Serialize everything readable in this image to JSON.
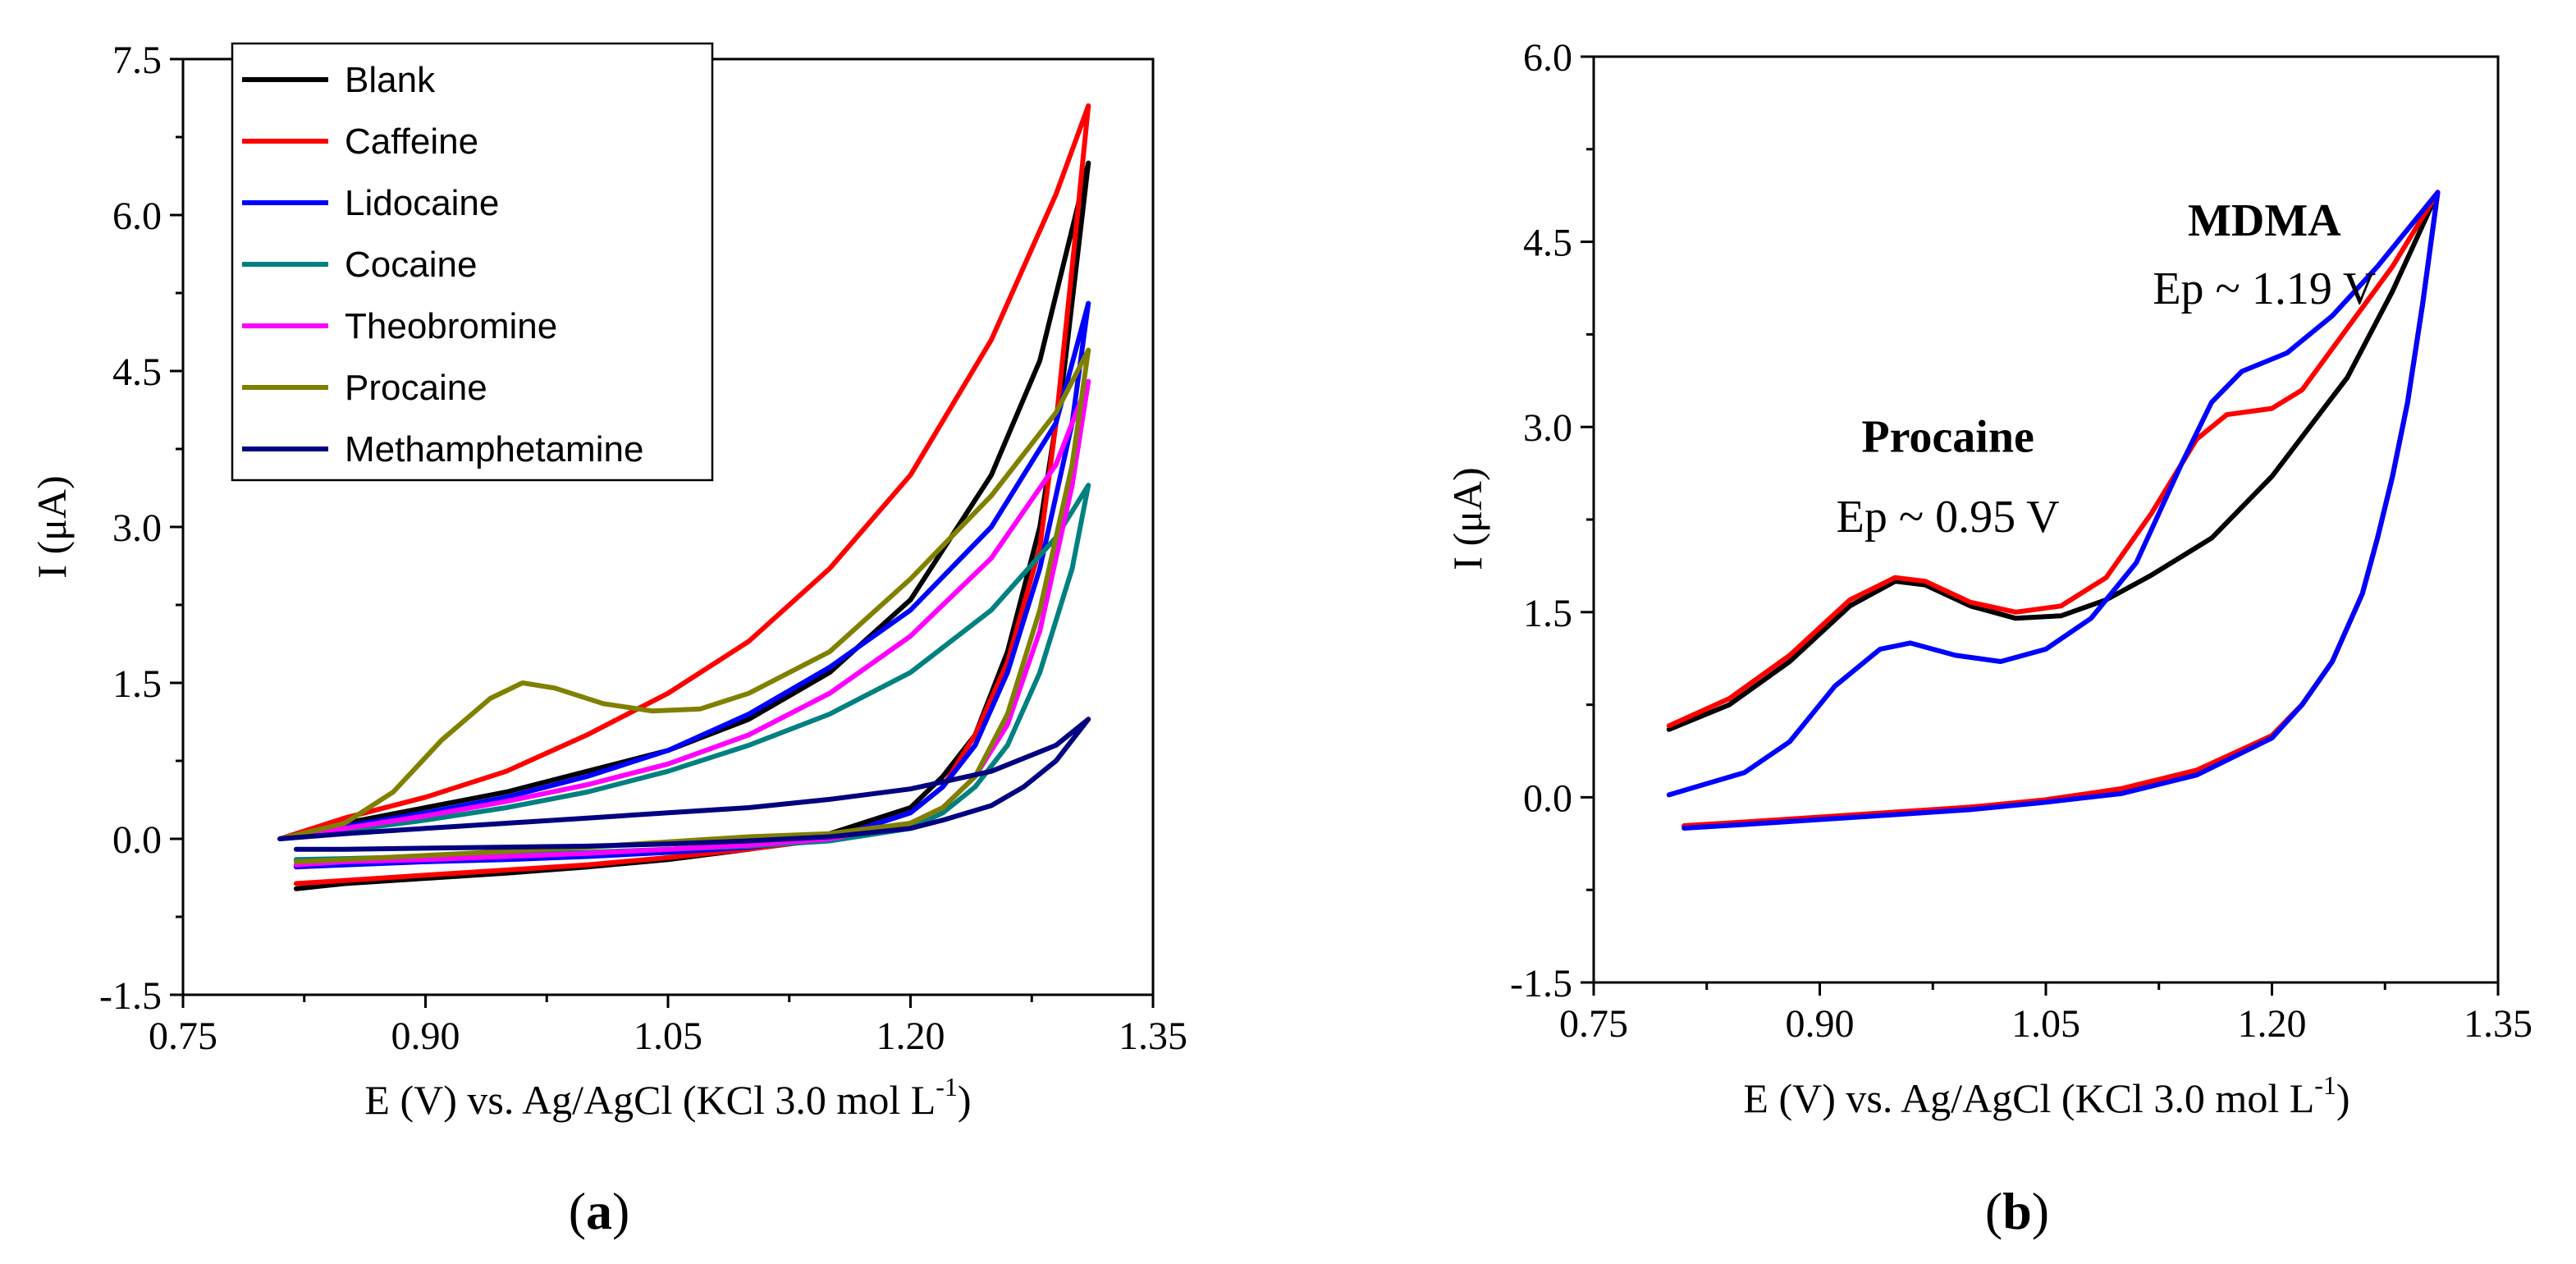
{
  "chart_data": [
    {
      "panel": "a",
      "type": "line",
      "title": "",
      "xlabel": "E (V) vs. Ag/AgCl (KCl 3.0 mol L",
      "xlabel_sup": "-1",
      "xlabel_end": ")",
      "ylabel": "I (μA)",
      "xlim": [
        0.75,
        1.35
      ],
      "ylim": [
        -1.5,
        7.5
      ],
      "xticks": [
        0.75,
        0.9,
        1.05,
        1.2,
        1.35
      ],
      "xtick_labels": [
        "0.75",
        "0.90",
        "1.05",
        "1.20",
        "1.35"
      ],
      "yticks": [
        -1.5,
        0.0,
        1.5,
        3.0,
        4.5,
        6.0,
        7.5
      ],
      "ytick_labels": [
        "-1.5",
        "0.0",
        "1.5",
        "3.0",
        "4.5",
        "6.0",
        "7.5"
      ],
      "legend_position": "top-left",
      "series": [
        {
          "name": "Blank",
          "color": "#000000",
          "forward": {
            "x": [
              0.81,
              0.85,
              0.9,
              0.95,
              1.0,
              1.05,
              1.1,
              1.15,
              1.2,
              1.25,
              1.28,
              1.31
            ],
            "y": [
              0.0,
              0.15,
              0.3,
              0.45,
              0.65,
              0.85,
              1.15,
              1.6,
              2.3,
              3.5,
              4.6,
              6.5
            ]
          },
          "reverse": {
            "x": [
              1.31,
              1.295,
              1.28,
              1.26,
              1.24,
              1.22,
              1.2,
              1.15,
              1.1,
              1.05,
              1.0,
              0.95,
              0.9,
              0.85,
              0.82
            ],
            "y": [
              6.5,
              4.5,
              3.0,
              1.8,
              1.0,
              0.6,
              0.3,
              0.05,
              -0.1,
              -0.2,
              -0.27,
              -0.33,
              -0.38,
              -0.43,
              -0.48
            ]
          }
        },
        {
          "name": "Caffeine",
          "color": "#ff0000",
          "forward": {
            "x": [
              0.81,
              0.85,
              0.9,
              0.95,
              1.0,
              1.05,
              1.1,
              1.15,
              1.2,
              1.25,
              1.29,
              1.31
            ],
            "y": [
              0.0,
              0.2,
              0.4,
              0.65,
              1.0,
              1.4,
              1.9,
              2.6,
              3.5,
              4.8,
              6.2,
              7.05
            ]
          },
          "reverse": {
            "x": [
              1.31,
              1.3,
              1.29,
              1.28,
              1.26,
              1.24,
              1.22,
              1.2,
              1.15,
              1.1,
              1.05,
              1.0,
              0.95,
              0.9,
              0.85,
              0.82
            ],
            "y": [
              7.05,
              5.5,
              4.0,
              2.8,
              1.7,
              1.0,
              0.5,
              0.25,
              0.0,
              -0.1,
              -0.18,
              -0.25,
              -0.3,
              -0.35,
              -0.4,
              -0.43
            ]
          }
        },
        {
          "name": "Lidocaine",
          "color": "#0000ff",
          "forward": {
            "x": [
              0.81,
              0.85,
              0.9,
              0.95,
              1.0,
              1.05,
              1.1,
              1.15,
              1.2,
              1.25,
              1.29,
              1.31
            ],
            "y": [
              0.0,
              0.12,
              0.25,
              0.4,
              0.6,
              0.85,
              1.2,
              1.65,
              2.2,
              3.0,
              4.0,
              5.15
            ]
          },
          "reverse": {
            "x": [
              1.31,
              1.3,
              1.28,
              1.26,
              1.24,
              1.22,
              1.2,
              1.15,
              1.1,
              1.05,
              1.0,
              0.95,
              0.9,
              0.85,
              0.82
            ],
            "y": [
              5.15,
              4.0,
              2.6,
              1.6,
              0.9,
              0.5,
              0.25,
              0.0,
              -0.08,
              -0.13,
              -0.17,
              -0.2,
              -0.22,
              -0.25,
              -0.27
            ]
          }
        },
        {
          "name": "Cocaine",
          "color": "#008080",
          "forward": {
            "x": [
              0.81,
              0.85,
              0.9,
              0.95,
              1.0,
              1.05,
              1.1,
              1.15,
              1.2,
              1.25,
              1.29,
              1.31
            ],
            "y": [
              0.0,
              0.08,
              0.18,
              0.3,
              0.45,
              0.65,
              0.9,
              1.2,
              1.6,
              2.2,
              2.9,
              3.4
            ]
          },
          "reverse": {
            "x": [
              1.31,
              1.3,
              1.28,
              1.26,
              1.24,
              1.22,
              1.2,
              1.15,
              1.1,
              1.05,
              1.0,
              0.95,
              0.9,
              0.85,
              0.82
            ],
            "y": [
              3.4,
              2.6,
              1.6,
              0.9,
              0.5,
              0.25,
              0.1,
              -0.02,
              -0.07,
              -0.1,
              -0.13,
              -0.15,
              -0.17,
              -0.19,
              -0.2
            ]
          }
        },
        {
          "name": "Theobromine",
          "color": "#ff00ff",
          "forward": {
            "x": [
              0.81,
              0.85,
              0.9,
              0.95,
              1.0,
              1.05,
              1.1,
              1.15,
              1.2,
              1.25,
              1.29,
              1.31
            ],
            "y": [
              0.0,
              0.1,
              0.22,
              0.36,
              0.52,
              0.72,
              1.0,
              1.4,
              1.95,
              2.7,
              3.6,
              4.4
            ]
          },
          "reverse": {
            "x": [
              1.31,
              1.3,
              1.28,
              1.26,
              1.24,
              1.22,
              1.2,
              1.15,
              1.1,
              1.05,
              1.0,
              0.95,
              0.9,
              0.85,
              0.82
            ],
            "y": [
              4.4,
              3.4,
              2.0,
              1.1,
              0.6,
              0.3,
              0.15,
              0.0,
              -0.06,
              -0.1,
              -0.14,
              -0.17,
              -0.2,
              -0.22,
              -0.25
            ]
          }
        },
        {
          "name": "Procaine",
          "color": "#808000",
          "forward": {
            "x": [
              0.81,
              0.85,
              0.88,
              0.91,
              0.94,
              0.96,
              0.98,
              1.01,
              1.04,
              1.07,
              1.1,
              1.15,
              1.2,
              1.25,
              1.29,
              1.31
            ],
            "y": [
              0.0,
              0.15,
              0.45,
              0.95,
              1.35,
              1.5,
              1.45,
              1.3,
              1.23,
              1.25,
              1.4,
              1.8,
              2.5,
              3.3,
              4.1,
              4.7
            ]
          },
          "reverse": {
            "x": [
              1.31,
              1.3,
              1.28,
              1.26,
              1.24,
              1.22,
              1.2,
              1.15,
              1.1,
              1.05,
              1.0,
              0.95,
              0.9,
              0.85,
              0.82
            ],
            "y": [
              4.7,
              3.6,
              2.2,
              1.2,
              0.6,
              0.3,
              0.15,
              0.05,
              0.02,
              -0.03,
              -0.08,
              -0.12,
              -0.16,
              -0.2,
              -0.22
            ]
          }
        },
        {
          "name": "Methamphetamine",
          "color": "#000080",
          "forward": {
            "x": [
              0.81,
              0.85,
              0.9,
              0.95,
              1.0,
              1.05,
              1.1,
              1.15,
              1.2,
              1.25,
              1.29,
              1.31
            ],
            "y": [
              0.0,
              0.05,
              0.1,
              0.15,
              0.2,
              0.25,
              0.3,
              0.38,
              0.48,
              0.65,
              0.9,
              1.15
            ]
          },
          "reverse": {
            "x": [
              1.31,
              1.29,
              1.27,
              1.25,
              1.22,
              1.2,
              1.15,
              1.1,
              1.05,
              1.0,
              0.95,
              0.9,
              0.85,
              0.82
            ],
            "y": [
              1.15,
              0.75,
              0.5,
              0.32,
              0.18,
              0.1,
              0.02,
              -0.02,
              -0.05,
              -0.07,
              -0.08,
              -0.09,
              -0.1,
              -0.1
            ]
          }
        }
      ],
      "panel_label": {
        "open": "(",
        "letter": "a",
        "close": ")"
      }
    },
    {
      "panel": "b",
      "type": "line",
      "title": "",
      "xlabel": "E (V) vs. Ag/AgCl (KCl 3.0 mol L",
      "xlabel_sup": "-1",
      "xlabel_end": ")",
      "ylabel": "I (μA)",
      "xlim": [
        0.75,
        1.35
      ],
      "ylim": [
        -1.5,
        6.0
      ],
      "xticks": [
        0.75,
        0.9,
        1.05,
        1.2,
        1.35
      ],
      "xtick_labels": [
        "0.75",
        "0.90",
        "1.05",
        "1.20",
        "1.35"
      ],
      "yticks": [
        -1.5,
        0.0,
        1.5,
        3.0,
        4.5,
        6.0
      ],
      "ytick_labels": [
        "-1.5",
        "0.0",
        "1.5",
        "3.0",
        "4.5",
        "6.0"
      ],
      "series": [
        {
          "name": "black",
          "color": "#000000",
          "forward": {
            "x": [
              0.8,
              0.84,
              0.88,
              0.92,
              0.95,
              0.97,
              1.0,
              1.03,
              1.06,
              1.09,
              1.12,
              1.16,
              1.2,
              1.25,
              1.28,
              1.31
            ],
            "y": [
              0.55,
              0.75,
              1.1,
              1.55,
              1.75,
              1.72,
              1.55,
              1.45,
              1.47,
              1.6,
              1.8,
              2.1,
              2.6,
              3.4,
              4.1,
              4.9
            ]
          },
          "reverse": {
            "x": [
              1.31,
              1.3,
              1.29,
              1.28,
              1.27,
              1.26,
              1.24,
              1.22,
              1.2,
              1.15,
              1.1,
              1.05,
              1.0,
              0.95,
              0.9,
              0.85,
              0.81
            ],
            "y": [
              4.9,
              4.0,
              3.2,
              2.6,
              2.1,
              1.65,
              1.1,
              0.75,
              0.5,
              0.2,
              0.05,
              -0.03,
              -0.08,
              -0.13,
              -0.17,
              -0.21,
              -0.24
            ]
          }
        },
        {
          "name": "red",
          "color": "#ff0000",
          "forward": {
            "x": [
              0.8,
              0.84,
              0.88,
              0.92,
              0.95,
              0.97,
              1.0,
              1.03,
              1.06,
              1.09,
              1.12,
              1.15,
              1.17,
              1.2,
              1.22,
              1.25,
              1.28,
              1.31
            ],
            "y": [
              0.58,
              0.8,
              1.15,
              1.6,
              1.78,
              1.75,
              1.58,
              1.5,
              1.55,
              1.78,
              2.3,
              2.9,
              3.1,
              3.15,
              3.3,
              3.8,
              4.3,
              4.9
            ]
          },
          "reverse": {
            "x": [
              1.31,
              1.3,
              1.29,
              1.28,
              1.27,
              1.26,
              1.24,
              1.22,
              1.2,
              1.15,
              1.1,
              1.05,
              1.0,
              0.95,
              0.9,
              0.85,
              0.81
            ],
            "y": [
              4.9,
              4.0,
              3.2,
              2.6,
              2.1,
              1.65,
              1.1,
              0.75,
              0.5,
              0.22,
              0.07,
              -0.02,
              -0.08,
              -0.12,
              -0.16,
              -0.2,
              -0.23
            ]
          }
        },
        {
          "name": "blue",
          "color": "#0000ff",
          "forward": {
            "x": [
              0.8,
              0.85,
              0.88,
              0.91,
              0.94,
              0.96,
              0.99,
              1.02,
              1.05,
              1.08,
              1.11,
              1.14,
              1.16,
              1.18,
              1.21,
              1.24,
              1.27,
              1.31
            ],
            "y": [
              0.02,
              0.2,
              0.45,
              0.9,
              1.2,
              1.25,
              1.15,
              1.1,
              1.2,
              1.45,
              1.9,
              2.7,
              3.2,
              3.45,
              3.6,
              3.9,
              4.3,
              4.9
            ]
          },
          "reverse": {
            "x": [
              1.31,
              1.3,
              1.29,
              1.28,
              1.27,
              1.26,
              1.24,
              1.22,
              1.2,
              1.15,
              1.1,
              1.05,
              1.0,
              0.95,
              0.9,
              0.85,
              0.81
            ],
            "y": [
              4.9,
              4.0,
              3.2,
              2.6,
              2.1,
              1.65,
              1.1,
              0.75,
              0.48,
              0.18,
              0.03,
              -0.04,
              -0.1,
              -0.14,
              -0.18,
              -0.22,
              -0.25
            ]
          }
        }
      ],
      "annotations": [
        {
          "text": "MDMA",
          "bold": true,
          "x": 1.195,
          "y": 4.55
        },
        {
          "text": "Ep ~ 1.19 V",
          "bold": false,
          "x": 1.195,
          "y": 4.0
        },
        {
          "text": "Procaine",
          "bold": true,
          "x": 0.985,
          "y": 2.8
        },
        {
          "text": "Ep ~ 0.95 V",
          "bold": false,
          "x": 0.985,
          "y": 2.15
        }
      ],
      "panel_label": {
        "open": "(",
        "letter": "b",
        "close": ")"
      }
    }
  ]
}
